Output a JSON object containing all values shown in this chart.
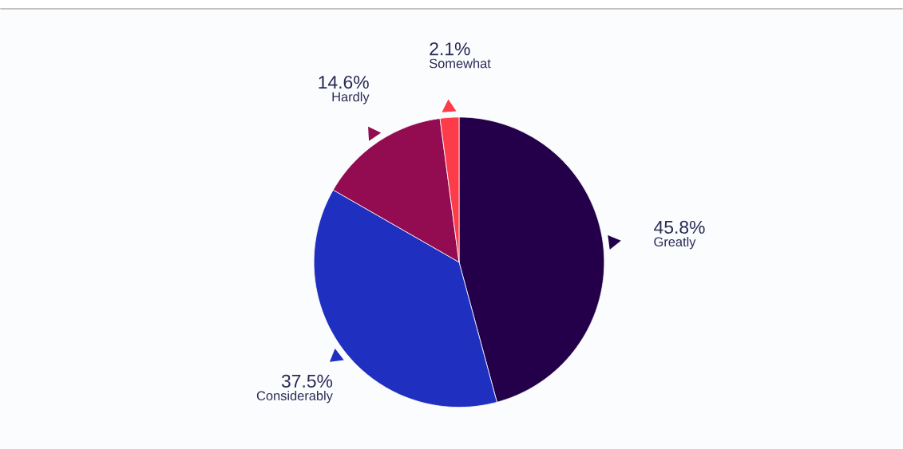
{
  "chart_data": {
    "type": "pie",
    "categories": [
      "Greatly",
      "Considerably",
      "Hardly",
      "Somewhat"
    ],
    "values": [
      45.8,
      37.5,
      14.6,
      2.1
    ],
    "value_labels": [
      "45.8%",
      "37.5%",
      "14.6%",
      "2.1%"
    ],
    "colors": [
      "#24004a",
      "#1f2fbf",
      "#930b50",
      "#fd3c4a"
    ]
  }
}
